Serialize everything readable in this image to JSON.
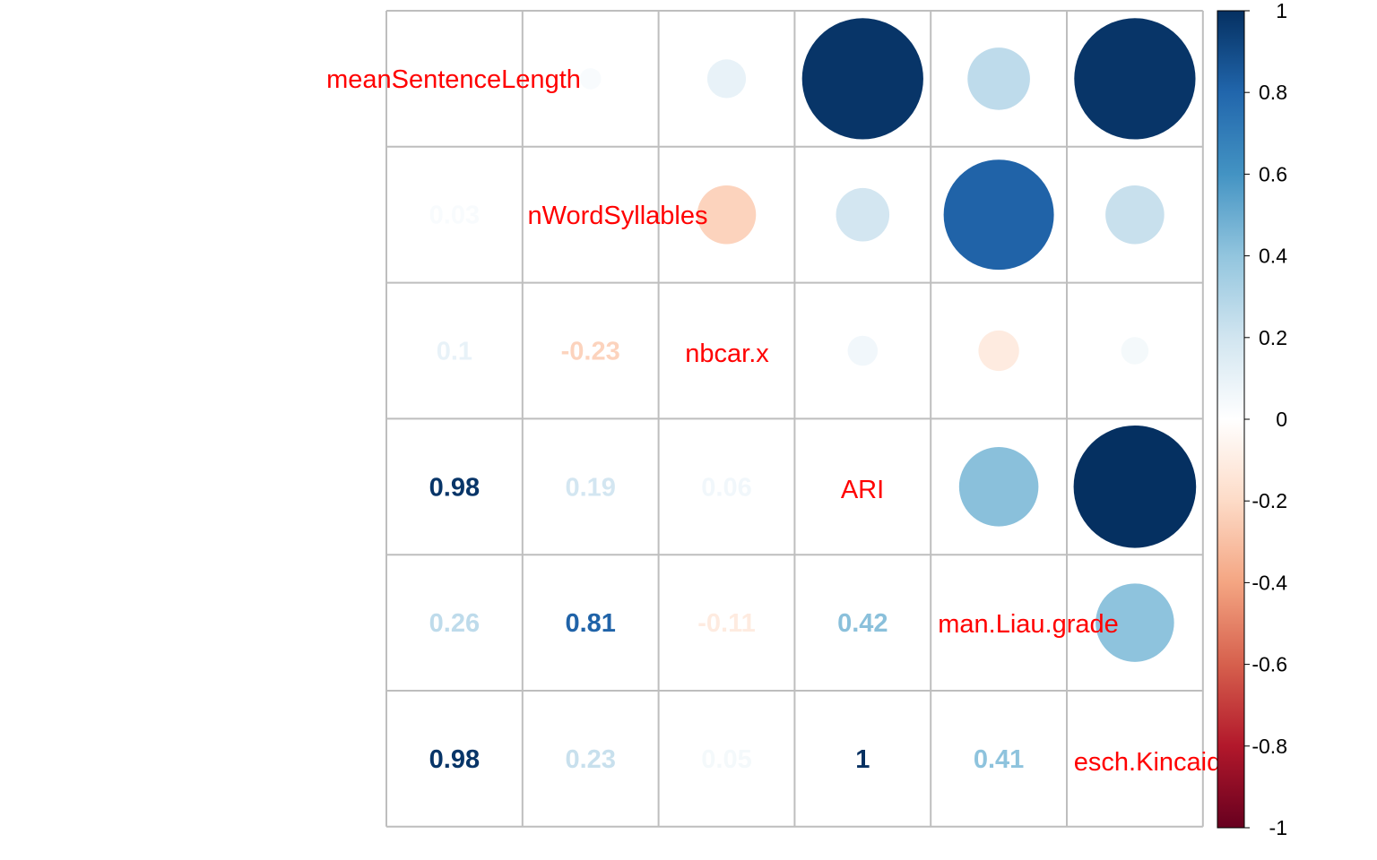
{
  "chart_data": {
    "type": "heatmap",
    "style": "corrplot-mixed",
    "upper": "circle",
    "lower": "number",
    "variables": [
      "meanSentenceLength",
      "meanWordSyllables",
      "nbcar.x",
      "ARI",
      "Coleman.Liau.grade",
      "Flesch.Kincaid"
    ],
    "diagonal_visible_labels": [
      "meanSentenceLength",
      "nWordSyllables",
      "nbcar.x",
      "ARI",
      "man.Liau.grade",
      "esch.Kincaid"
    ],
    "matrix": [
      [
        1,
        0.03,
        0.1,
        0.98,
        0.26,
        0.98
      ],
      [
        0.03,
        1,
        -0.23,
        0.19,
        0.81,
        0.23
      ],
      [
        0.1,
        -0.23,
        1,
        0.06,
        -0.11,
        0.05
      ],
      [
        0.98,
        0.19,
        0.06,
        1,
        0.42,
        1
      ],
      [
        0.26,
        0.81,
        -0.11,
        0.42,
        1,
        0.41
      ],
      [
        0.98,
        0.23,
        0.05,
        1,
        0.41,
        1
      ]
    ],
    "lower_labels": [
      [
        "0.03"
      ],
      [
        "0.1",
        "-0.23"
      ],
      [
        "0.98",
        "0.19",
        "0.06"
      ],
      [
        "0.26",
        "0.81",
        "-0.11",
        "0.42"
      ],
      [
        "0.98",
        "0.23",
        "0.05",
        "1",
        "0.41"
      ]
    ],
    "colorbar": {
      "ticks": [
        "1",
        "0.8",
        "0.6",
        "0.4",
        "0.2",
        "0",
        "-0.2",
        "-0.4",
        "-0.6",
        "-0.8",
        "-1"
      ],
      "range": [
        -1,
        1
      ]
    },
    "palette": [
      "#67001F",
      "#B2182B",
      "#D6604D",
      "#F4A582",
      "#FDDBC7",
      "#FFFFFF",
      "#D1E5F0",
      "#92C5DE",
      "#4393C3",
      "#2166AC",
      "#053061"
    ],
    "label_color": "#FF0000",
    "grid_color": "#BEBEBE"
  }
}
